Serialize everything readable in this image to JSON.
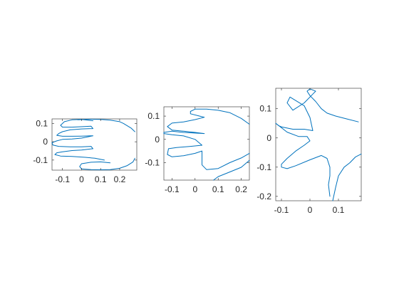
{
  "chart_data": [
    {
      "type": "line",
      "title": "",
      "xlabel": "",
      "ylabel": "",
      "xlim": [
        -0.155,
        0.29
      ],
      "ylim": [
        -0.155,
        0.125
      ],
      "xticks": [
        -0.1,
        0,
        0.1,
        0.2
      ],
      "xtick_labels": [
        "-0.1",
        "0",
        "0.1",
        "0.2"
      ],
      "yticks": [
        -0.1,
        0,
        0.1
      ],
      "ytick_labels": [
        "-0.1",
        "0",
        "0.1"
      ],
      "grid": false,
      "series": [
        {
          "color": "#0072bd",
          "x": [
            -0.02,
            0.05,
            0.1,
            0.15,
            0.2,
            0.22,
            0.26,
            0.28
          ],
          "y": [
            0.12,
            0.123,
            0.122,
            0.118,
            0.11,
            0.1,
            0.075,
            0.055
          ]
        },
        {
          "color": "#0072bd",
          "x": [
            0.06,
            0.0,
            -0.05,
            -0.09,
            -0.11,
            -0.1,
            -0.05,
            0.05,
            0.06,
            0.0,
            -0.06,
            -0.1,
            -0.12,
            -0.13,
            -0.1,
            -0.05,
            0.0,
            0.06,
            0.0,
            -0.05,
            -0.1,
            -0.13,
            -0.155,
            -0.15,
            -0.12,
            -0.06,
            0.0,
            0.05,
            0.06,
            0.0,
            -0.05,
            -0.1,
            -0.13,
            -0.14,
            -0.11,
            -0.05,
            0.02,
            0.07,
            0.12
          ],
          "y": [
            0.115,
            0.122,
            0.12,
            0.11,
            0.09,
            0.08,
            0.08,
            0.085,
            0.072,
            0.07,
            0.065,
            0.055,
            0.045,
            0.035,
            0.03,
            0.03,
            0.031,
            0.033,
            0.02,
            0.015,
            0.013,
            0.005,
            -0.005,
            -0.018,
            -0.025,
            -0.028,
            -0.028,
            -0.025,
            -0.038,
            -0.045,
            -0.048,
            -0.055,
            -0.06,
            -0.07,
            -0.078,
            -0.08,
            -0.085,
            -0.09,
            -0.1
          ]
        },
        {
          "color": "#0072bd",
          "x": [
            0.15,
            0.1,
            0.05,
            0.0,
            -0.01,
            0.0,
            0.05,
            0.1,
            0.15,
            0.2,
            0.24,
            0.27,
            0.28
          ],
          "y": [
            -0.115,
            -0.11,
            -0.112,
            -0.12,
            -0.135,
            -0.148,
            -0.152,
            -0.153,
            -0.152,
            -0.145,
            -0.13,
            -0.11,
            -0.09
          ]
        }
      ]
    },
    {
      "type": "line",
      "title": "",
      "xlabel": "",
      "ylabel": "",
      "xlim": [
        -0.135,
        0.235
      ],
      "ylim": [
        -0.175,
        0.14
      ],
      "xticks": [
        -0.1,
        0,
        0.1,
        0.2
      ],
      "xtick_labels": [
        "-0.1",
        "0",
        "0.1",
        "0.2"
      ],
      "yticks": [
        -0.1,
        0,
        0.1
      ],
      "ytick_labels": [
        "-0.1",
        "0",
        "0.1"
      ],
      "grid": false,
      "series": [
        {
          "color": "#0072bd",
          "x": [
            0.235,
            0.2,
            0.15,
            0.1,
            0.05,
            0.0,
            -0.02,
            -0.02,
            0.02,
            0.04,
            0.0,
            -0.05,
            -0.1,
            -0.12,
            -0.1,
            -0.05,
            0.0,
            0.04,
            -0.05,
            -0.1,
            -0.135,
            -0.135,
            -0.1,
            -0.05,
            0.0,
            0.03,
            -0.02,
            -0.08,
            -0.115,
            -0.12,
            -0.1,
            -0.05,
            0.0,
            0.03,
            0.03,
            0.05,
            0.1,
            0.15,
            0.2,
            0.235
          ],
          "y": [
            0.065,
            0.09,
            0.115,
            0.125,
            0.13,
            0.13,
            0.12,
            0.11,
            0.1,
            0.095,
            0.085,
            0.075,
            0.07,
            0.055,
            0.04,
            0.035,
            0.03,
            0.025,
            0.03,
            0.035,
            0.03,
            0.025,
            0.02,
            0.015,
            0.0,
            -0.025,
            -0.03,
            -0.035,
            -0.04,
            -0.065,
            -0.075,
            -0.07,
            -0.06,
            -0.05,
            -0.11,
            -0.13,
            -0.125,
            -0.1,
            -0.08,
            -0.06
          ]
        },
        {
          "color": "#0072bd",
          "x": [
            0.235,
            0.2,
            0.15,
            0.1,
            0.08
          ],
          "y": [
            -0.09,
            -0.12,
            -0.14,
            -0.16,
            -0.175
          ]
        }
      ]
    },
    {
      "type": "line",
      "title": "",
      "xlabel": "",
      "ylabel": "",
      "xlim": [
        -0.12,
        0.18
      ],
      "ylim": [
        -0.215,
        0.17
      ],
      "xticks": [
        -0.1,
        0,
        0.1
      ],
      "xtick_labels": [
        "-0.1",
        "0",
        "0.1"
      ],
      "yticks": [
        -0.2,
        -0.1,
        0,
        0.1
      ],
      "ytick_labels": [
        "-0.2",
        "-0.1",
        "0",
        "0.1"
      ],
      "grid": false,
      "series": [
        {
          "color": "#0072bd",
          "x": [
            0.17,
            0.13,
            0.09,
            0.06,
            0.04,
            0.02,
            0.0,
            -0.01,
            0.0,
            0.02,
            0.01,
            -0.02,
            -0.06,
            -0.08,
            -0.07,
            -0.02,
            0.0,
            0.01,
            -0.02,
            -0.06,
            -0.1,
            -0.11,
            -0.12,
            -0.08,
            -0.04,
            -0.01,
            0.0,
            -0.02,
            -0.05,
            -0.08,
            -0.1,
            -0.1,
            -0.08,
            -0.05,
            0.0,
            0.04,
            0.06,
            0.07,
            0.07,
            0.065,
            0.07
          ],
          "y": [
            0.055,
            0.065,
            0.075,
            0.085,
            0.1,
            0.125,
            0.145,
            0.16,
            0.168,
            0.16,
            0.15,
            0.12,
            0.095,
            0.12,
            0.14,
            0.11,
            0.07,
            0.025,
            0.03,
            0.03,
            0.038,
            0.042,
            0.05,
            0.02,
            0.005,
            0.005,
            -0.01,
            -0.025,
            -0.045,
            -0.07,
            -0.09,
            -0.1,
            -0.105,
            -0.095,
            -0.075,
            -0.06,
            -0.07,
            -0.1,
            -0.13,
            -0.16,
            -0.2
          ]
        },
        {
          "color": "#0072bd",
          "x": [
            0.18,
            0.16,
            0.14,
            0.12,
            0.1,
            0.09,
            0.08
          ],
          "y": [
            -0.055,
            -0.065,
            -0.085,
            -0.1,
            -0.13,
            -0.17,
            -0.215
          ]
        }
      ]
    }
  ]
}
